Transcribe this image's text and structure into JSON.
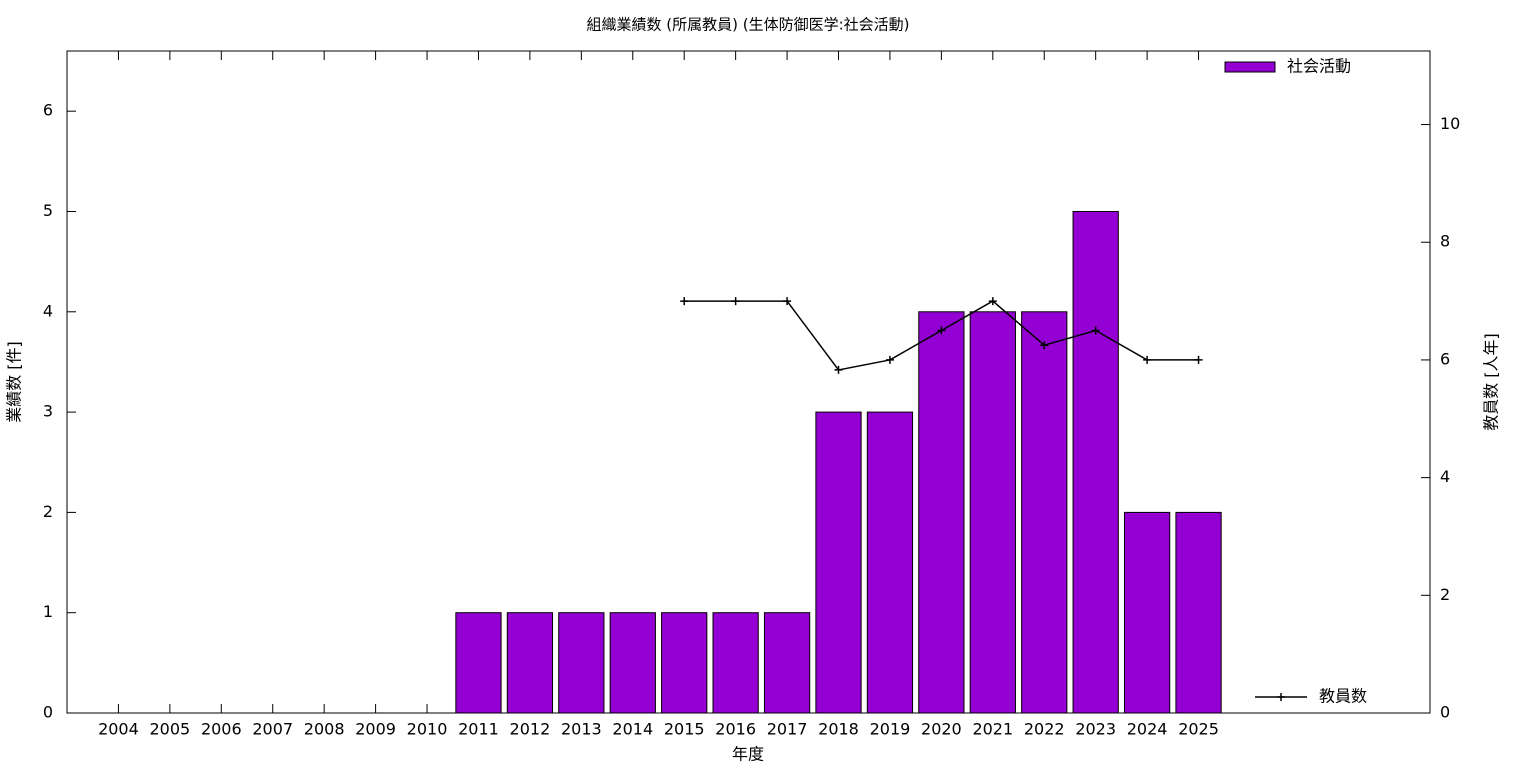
{
  "chart_data": {
    "type": "bar",
    "title": "組織業績数 (所属教員) (生体防御医学:社会活動)",
    "x_label": "年度",
    "y_label": "業績数 [件]",
    "y2_label": "教員数 [人年]",
    "categories": [
      "2004",
      "2005",
      "2006",
      "2007",
      "2008",
      "2009",
      "2010",
      "2011",
      "2012",
      "2013",
      "2014",
      "2015",
      "2016",
      "2017",
      "2018",
      "2019",
      "2020",
      "2021",
      "2022",
      "2023",
      "2024",
      "2025"
    ],
    "series": [
      {
        "name": "社会活動",
        "type": "bar",
        "color": "#9400d3",
        "legend_corner": "upper right",
        "values": [
          0,
          0,
          0,
          0,
          0,
          0,
          0,
          1,
          1,
          1,
          1,
          1,
          1,
          1,
          3,
          3,
          4,
          4,
          4,
          5,
          2,
          2
        ]
      },
      {
        "name": "教員数",
        "type": "line",
        "axis": "y2",
        "color": "#000000",
        "legend_corner": "lower right",
        "values": [
          null,
          null,
          null,
          null,
          null,
          null,
          null,
          null,
          null,
          null,
          null,
          7,
          7,
          7,
          5.83,
          6,
          6.5,
          7,
          6.25,
          6.5,
          6,
          6
        ]
      }
    ],
    "ylim": [
      0,
      6.6
    ],
    "yticks": [
      0,
      1,
      2,
      3,
      4,
      5,
      6
    ],
    "y2lim": [
      0,
      11.25
    ],
    "y2ticks": [
      0,
      2,
      4,
      6,
      8,
      10
    ]
  }
}
